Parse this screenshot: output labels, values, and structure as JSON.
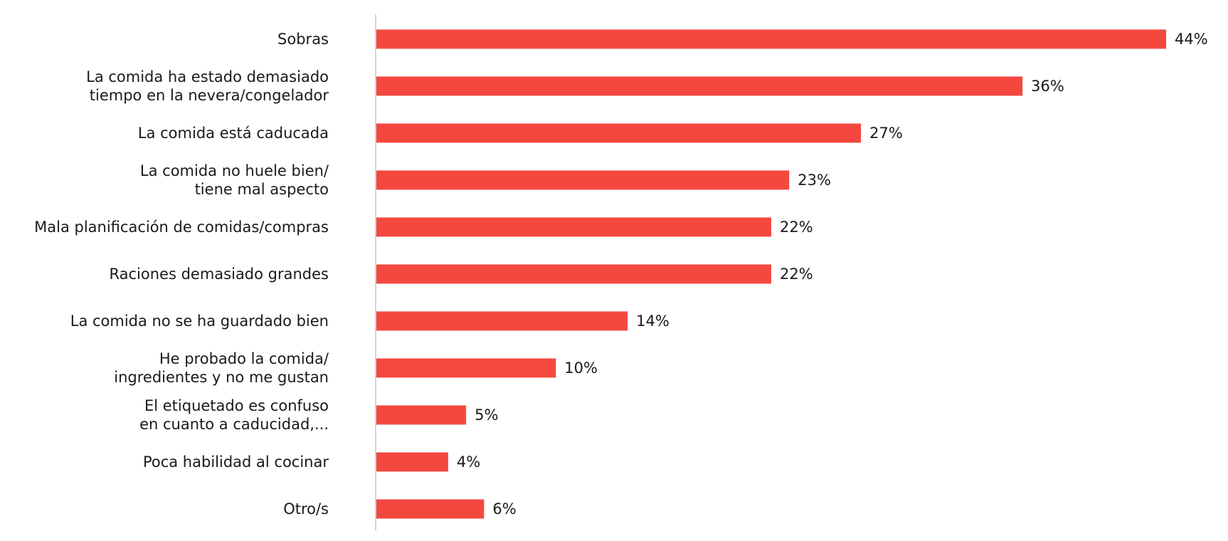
{
  "chart_data": {
    "type": "bar",
    "orientation": "horizontal",
    "categories": [
      [
        "Sobras"
      ],
      [
        "La comida ha estado demasiado",
        "tiempo en la nevera/congelador"
      ],
      [
        "La comida está caducada"
      ],
      [
        "La comida no huele bien/",
        "tiene mal aspecto"
      ],
      [
        "Mala planificación de comidas/compras"
      ],
      [
        "Raciones demasiado grandes"
      ],
      [
        "La comida no se ha guardado bien"
      ],
      [
        "He probado la comida/",
        "ingredientes y no me gustan"
      ],
      [
        "El etiquetado es confuso",
        "en cuanto a caducidad,..."
      ],
      [
        "Poca habilidad al cocinar"
      ],
      [
        "Otro/s"
      ]
    ],
    "values": [
      44,
      36,
      27,
      23,
      22,
      22,
      14,
      10,
      5,
      4,
      6
    ],
    "value_labels": [
      "44%",
      "36%",
      "27%",
      "23%",
      "22%",
      "22%",
      "14%",
      "10%",
      "5%",
      "4%",
      "6%"
    ],
    "xlim": [
      0,
      44
    ],
    "grid": false,
    "legend": "none",
    "bar_color": "#f4483f",
    "axis_color": "#b3b3b3"
  }
}
